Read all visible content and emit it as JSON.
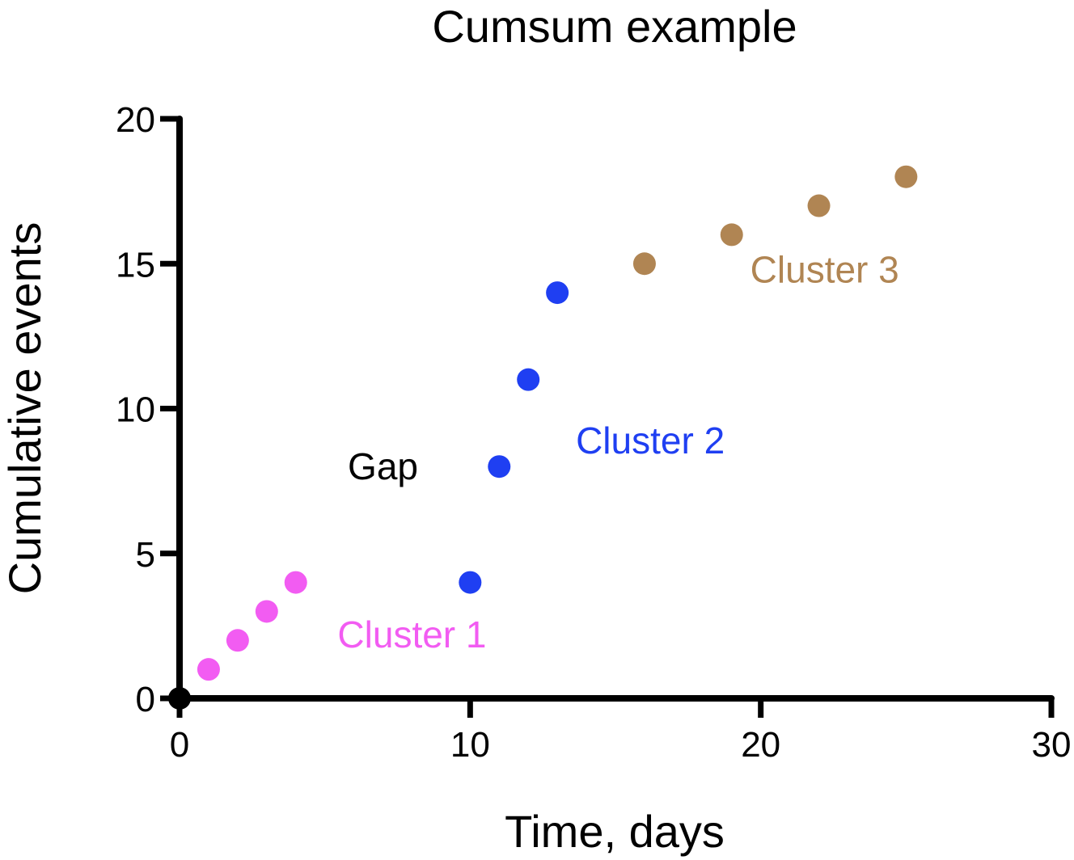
{
  "chart_data": {
    "type": "scatter",
    "title": "Cumsum example",
    "xlabel": "Time, days",
    "ylabel": "Cumulative events",
    "xlim": [
      0,
      30
    ],
    "ylim": [
      0,
      20
    ],
    "xticks": [
      0,
      10,
      20,
      30
    ],
    "yticks": [
      0,
      5,
      10,
      15,
      20
    ],
    "grid": false,
    "series": [
      {
        "color": "#000000",
        "points": [
          [
            0,
            0
          ]
        ]
      },
      {
        "color": "#f25cf2",
        "points": [
          [
            1,
            1
          ],
          [
            2,
            2
          ],
          [
            3,
            3
          ],
          [
            4,
            4
          ]
        ]
      },
      {
        "color": "#1f3ff2",
        "points": [
          [
            10,
            4
          ],
          [
            11,
            8
          ],
          [
            12,
            11
          ],
          [
            13,
            14
          ]
        ]
      },
      {
        "color": "#b08553",
        "points": [
          [
            16,
            15
          ],
          [
            19,
            16
          ],
          [
            22,
            17
          ],
          [
            25,
            18
          ]
        ]
      }
    ],
    "annotations": [
      {
        "text": "Cluster 1",
        "x": 8,
        "y": 2.2,
        "color": "#f25cf2"
      },
      {
        "text": "Gap",
        "x": 7,
        "y": 8,
        "color": "#000000"
      },
      {
        "text": "Cluster 2",
        "x": 16.2,
        "y": 8.9,
        "color": "#1f3ff2"
      },
      {
        "text": "Cluster 3",
        "x": 22.2,
        "y": 14.8,
        "color": "#b08553"
      }
    ]
  }
}
